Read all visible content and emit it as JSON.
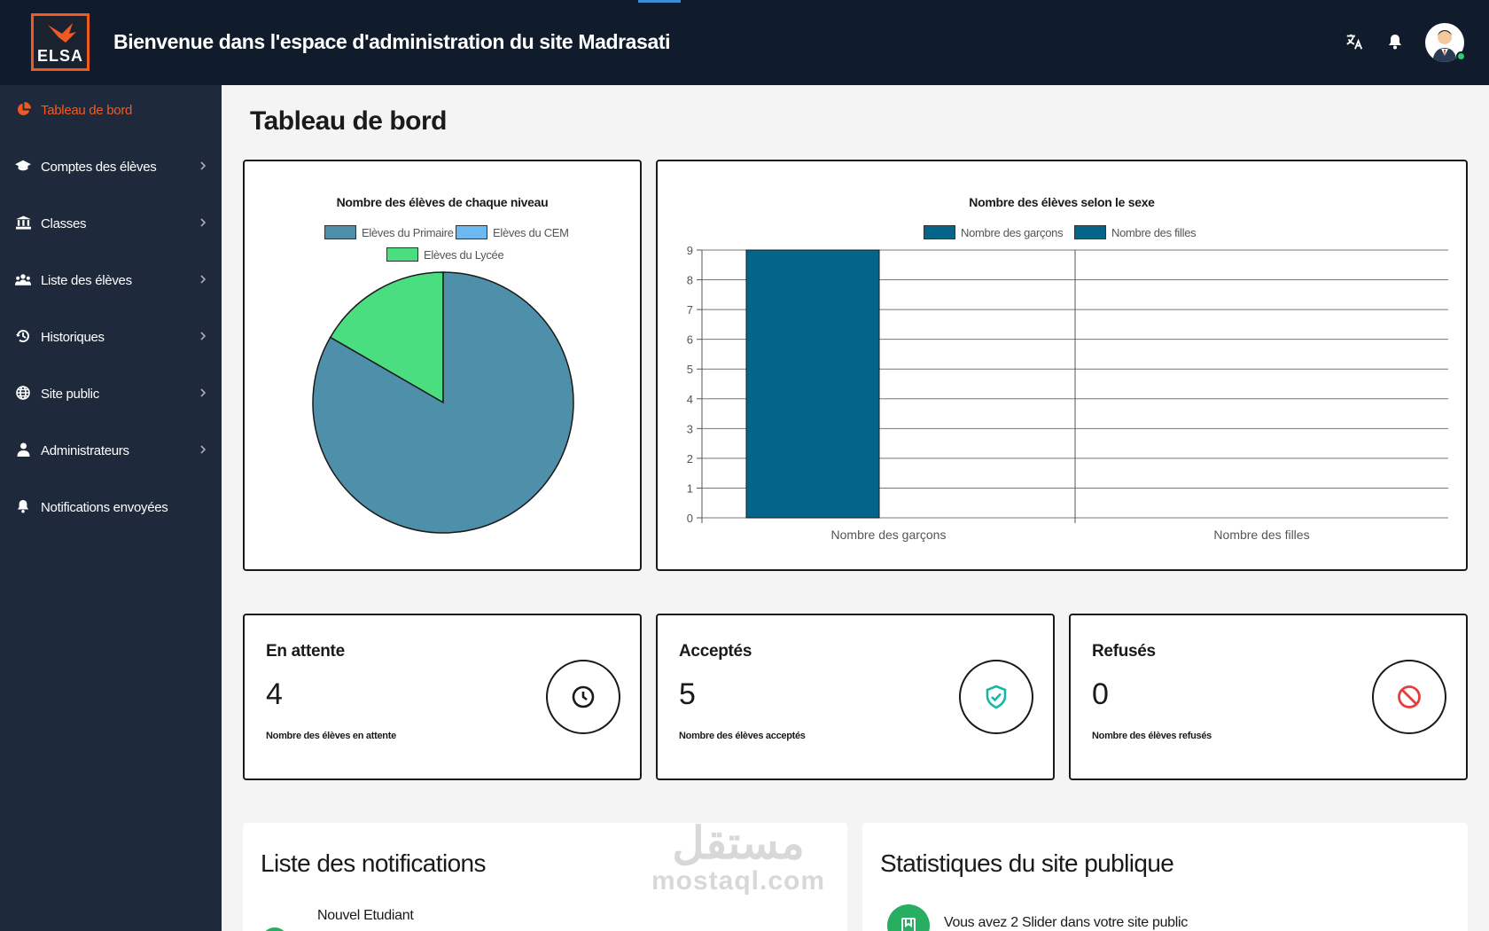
{
  "header": {
    "logo_text": "ELSA",
    "title": "Bienvenue dans l'espace d'administration du site Madrasati",
    "icons": [
      "translate-icon",
      "bell-icon",
      "user-avatar"
    ]
  },
  "sidebar": {
    "items": [
      {
        "label": "Tableau de bord",
        "icon": "pie-chart-icon",
        "active": true
      },
      {
        "label": "Comptes des élèves",
        "icon": "graduation-cap-icon"
      },
      {
        "label": "Classes",
        "icon": "bank-icon"
      },
      {
        "label": "Liste des élèves",
        "icon": "users-icon"
      },
      {
        "label": "Historiques",
        "icon": "history-icon"
      },
      {
        "label": "Site public",
        "icon": "globe-icon"
      },
      {
        "label": "Administrateurs",
        "icon": "user-icon"
      },
      {
        "label": "Notifications envoyées",
        "icon": "bell-icon"
      }
    ]
  },
  "main": {
    "page_title": "Tableau de bord"
  },
  "chart_data": [
    {
      "type": "pie",
      "title": "Nombre des élèves de chaque niveau",
      "labels": [
        "Elèves du Primaire",
        "Elèves du CEM",
        "Elèves du Lycée"
      ],
      "values": [
        5,
        0,
        1
      ],
      "colors": [
        "#4e8fa9",
        "#6cb8f0",
        "#4ade80"
      ]
    },
    {
      "type": "bar",
      "title": "Nombre des élèves selon le sexe",
      "categories": [
        "Nombre des garçons",
        "Nombre des filles"
      ],
      "series": [
        {
          "name": "Nombre des garçons",
          "values": [
            9,
            0
          ]
        },
        {
          "name": "Nombre des filles",
          "values": [
            0,
            0
          ]
        }
      ],
      "ylim": [
        0,
        9
      ],
      "yticks": [
        "0",
        "1",
        "2",
        "3",
        "4",
        "5",
        "6",
        "7",
        "8",
        "9"
      ],
      "colors": [
        "#04648a",
        "#04648a"
      ],
      "grid": true
    }
  ],
  "stats": [
    {
      "title": "En attente",
      "value": "4",
      "sub": "Nombre des élèves en attente",
      "icon": "clock-icon",
      "color": "#1a1a1a"
    },
    {
      "title": "Acceptés",
      "value": "5",
      "sub": "Nombre des élèves acceptés",
      "icon": "shield-check-icon",
      "color": "#14b8a6"
    },
    {
      "title": "Refusés",
      "value": "0",
      "sub": "Nombre des élèves refusés",
      "icon": "ban-icon",
      "color": "#e53e3e"
    }
  ],
  "notifications": {
    "title": "Liste des notifications",
    "items": [
      {
        "label": "Nouvel Etudiant"
      }
    ]
  },
  "site_stats": {
    "title": "Statistiques du site publique",
    "items": [
      {
        "text": "Vous avez 2 Slider dans votre site public"
      }
    ]
  },
  "watermark": {
    "arabic": "مستقل",
    "latin": "mostaql.com"
  }
}
